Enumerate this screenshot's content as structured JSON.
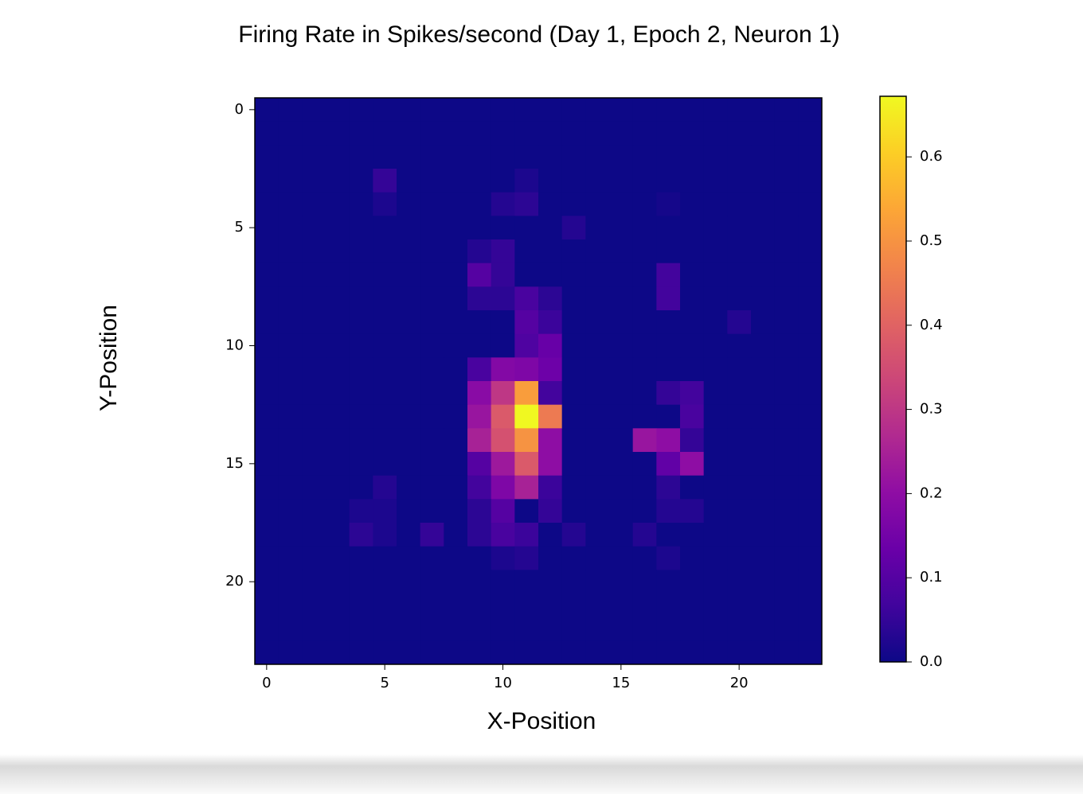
{
  "chart_data": {
    "type": "heatmap",
    "title": "Firing Rate in Spikes/second (Day 1, Epoch 2, Neuron 1)",
    "x_label": "X-Position",
    "y_label": "Y-Position",
    "colormap": "plasma",
    "xlim": [
      -0.5,
      23.5
    ],
    "ylim": [
      23.5,
      -0.5
    ],
    "xticks": [
      0,
      5,
      10,
      15,
      20
    ],
    "yticks": [
      0,
      5,
      10,
      15,
      20
    ],
    "clim": [
      0,
      0.672
    ],
    "cticks": [
      {
        "value": 0,
        "label": "0.0"
      },
      0.1,
      0.2,
      0.3,
      0.4,
      0.5,
      0.6
    ],
    "z": [
      [
        0,
        0,
        0,
        0,
        0,
        0,
        0,
        0,
        0,
        0,
        0,
        0,
        0,
        0,
        0,
        0,
        0,
        0,
        0,
        0,
        0,
        0,
        0,
        0
      ],
      [
        0,
        0,
        0,
        0,
        0,
        0,
        0,
        0,
        0,
        0,
        0,
        0,
        0,
        0,
        0,
        0,
        0,
        0,
        0,
        0,
        0,
        0,
        0,
        0
      ],
      [
        0,
        0,
        0,
        0,
        0,
        0,
        0,
        0,
        0,
        0,
        0,
        0,
        0,
        0,
        0,
        0,
        0,
        0,
        0,
        0,
        0,
        0,
        0,
        0
      ],
      [
        0,
        0,
        0,
        0,
        0,
        0.05,
        0,
        0,
        0,
        0,
        0,
        0.02,
        0,
        0,
        0,
        0,
        0,
        0,
        0,
        0,
        0,
        0,
        0,
        0
      ],
      [
        0,
        0,
        0,
        0,
        0,
        0.02,
        0,
        0,
        0,
        0,
        0.03,
        0.04,
        0,
        0,
        0,
        0,
        0,
        0.01,
        0,
        0,
        0,
        0,
        0,
        0
      ],
      [
        0,
        0,
        0,
        0,
        0,
        0,
        0,
        0,
        0,
        0,
        0,
        0,
        0,
        0.03,
        0,
        0,
        0,
        0,
        0,
        0,
        0,
        0,
        0,
        0
      ],
      [
        0,
        0,
        0,
        0,
        0,
        0,
        0,
        0,
        0,
        0.03,
        0.05,
        0,
        0,
        0,
        0,
        0,
        0,
        0,
        0,
        0,
        0,
        0,
        0,
        0
      ],
      [
        0,
        0,
        0,
        0,
        0,
        0,
        0,
        0,
        0,
        0.1,
        0.05,
        0,
        0,
        0,
        0,
        0,
        0,
        0.07,
        0,
        0,
        0,
        0,
        0,
        0
      ],
      [
        0,
        0,
        0,
        0,
        0,
        0,
        0,
        0,
        0,
        0.04,
        0.04,
        0.08,
        0.04,
        0,
        0,
        0,
        0,
        0.07,
        0,
        0,
        0,
        0,
        0,
        0
      ],
      [
        0,
        0,
        0,
        0,
        0,
        0,
        0,
        0,
        0,
        0,
        0,
        0.1,
        0.06,
        0,
        0,
        0,
        0,
        0,
        0,
        0,
        0.03,
        0,
        0,
        0
      ],
      [
        0,
        0,
        0,
        0,
        0,
        0,
        0,
        0,
        0,
        0,
        0,
        0.09,
        0.13,
        0,
        0,
        0,
        0,
        0,
        0,
        0,
        0,
        0,
        0,
        0
      ],
      [
        0,
        0,
        0,
        0,
        0,
        0,
        0,
        0,
        0,
        0.08,
        0.18,
        0.17,
        0.14,
        0,
        0,
        0,
        0,
        0,
        0,
        0,
        0,
        0,
        0,
        0
      ],
      [
        0,
        0,
        0,
        0,
        0,
        0,
        0,
        0,
        0,
        0.19,
        0.3,
        0.52,
        0.07,
        0,
        0,
        0,
        0,
        0.05,
        0.07,
        0,
        0,
        0,
        0,
        0
      ],
      [
        0,
        0,
        0,
        0,
        0,
        0,
        0,
        0,
        0,
        0.22,
        0.38,
        0.67,
        0.45,
        0,
        0,
        0,
        0,
        0,
        0.08,
        0,
        0,
        0,
        0,
        0
      ],
      [
        0,
        0,
        0,
        0,
        0,
        0,
        0,
        0,
        0,
        0.25,
        0.36,
        0.5,
        0.2,
        0,
        0,
        0,
        0.22,
        0.2,
        0.05,
        0,
        0,
        0,
        0,
        0
      ],
      [
        0,
        0,
        0,
        0,
        0,
        0,
        0,
        0,
        0,
        0.1,
        0.23,
        0.38,
        0.2,
        0,
        0,
        0,
        0,
        0.12,
        0.2,
        0,
        0,
        0,
        0,
        0
      ],
      [
        0,
        0,
        0,
        0,
        0,
        0.03,
        0,
        0,
        0,
        0.07,
        0.17,
        0.25,
        0.06,
        0,
        0,
        0,
        0,
        0.04,
        0,
        0,
        0,
        0,
        0,
        0
      ],
      [
        0,
        0,
        0,
        0,
        0.02,
        0.02,
        0,
        0,
        0,
        0.04,
        0.1,
        0,
        0.05,
        0,
        0,
        0,
        0,
        0.03,
        0.03,
        0,
        0,
        0,
        0,
        0
      ],
      [
        0,
        0,
        0,
        0,
        0.04,
        0.02,
        0,
        0.05,
        0,
        0.04,
        0.08,
        0.06,
        0,
        0.03,
        0,
        0,
        0.03,
        0,
        0,
        0,
        0,
        0,
        0,
        0
      ],
      [
        0,
        0,
        0,
        0,
        0,
        0,
        0,
        0,
        0,
        0,
        0.02,
        0.03,
        0,
        0,
        0,
        0,
        0,
        0.02,
        0,
        0,
        0,
        0,
        0,
        0
      ],
      [
        0,
        0,
        0,
        0,
        0,
        0,
        0,
        0,
        0,
        0,
        0,
        0,
        0,
        0,
        0,
        0,
        0,
        0,
        0,
        0,
        0,
        0,
        0,
        0
      ],
      [
        0,
        0,
        0,
        0,
        0,
        0,
        0,
        0,
        0,
        0,
        0,
        0,
        0,
        0,
        0,
        0,
        0,
        0,
        0,
        0,
        0,
        0,
        0,
        0
      ],
      [
        0,
        0,
        0,
        0,
        0,
        0,
        0,
        0,
        0,
        0,
        0,
        0,
        0,
        0,
        0,
        0,
        0,
        0,
        0,
        0,
        0,
        0,
        0,
        0
      ],
      [
        0,
        0,
        0,
        0,
        0,
        0,
        0,
        0,
        0,
        0,
        0,
        0,
        0,
        0,
        0,
        0,
        0,
        0,
        0,
        0,
        0,
        0,
        0,
        0
      ]
    ]
  }
}
